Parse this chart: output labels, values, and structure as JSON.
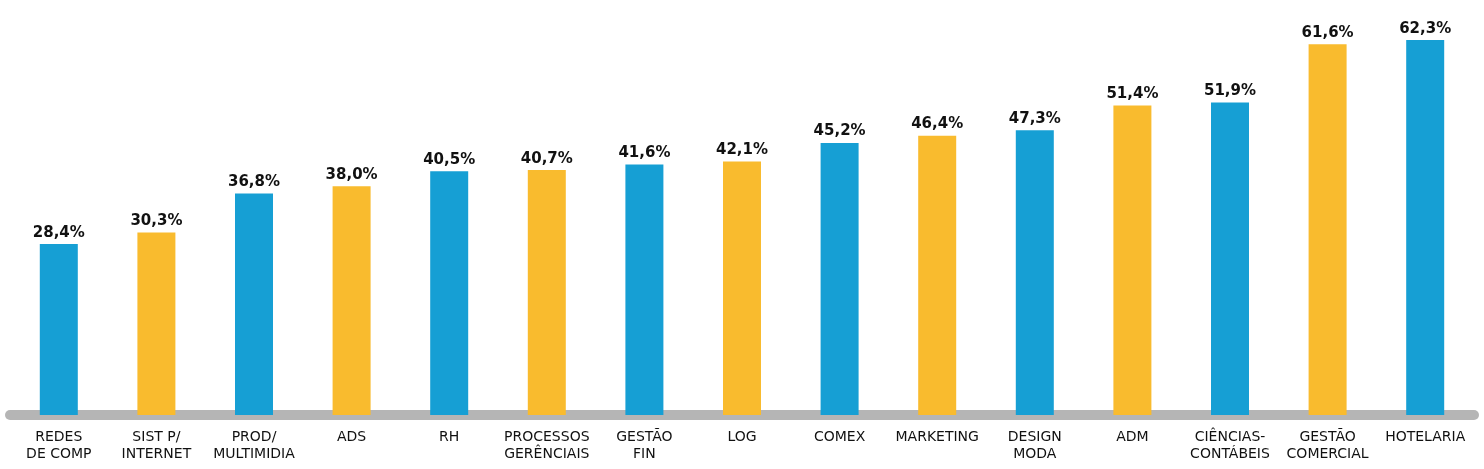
{
  "chart_data": {
    "type": "bar",
    "categories": [
      "REDES\nDE COMP",
      "SIST P/\nINTERNET",
      "PROD/\nMULTIMIDIA",
      "ADS",
      "RH",
      "PROCESSOS\nGERÊNCIAIS",
      "GESTÃO\nFIN",
      "LOG",
      "COMEX",
      "MARKETING",
      "DESIGN\nMODA",
      "ADM",
      "CIÊNCIAS-\nCONTÁBEIS",
      "GESTÃO\nCOMERCIAL",
      "HOTELARIA"
    ],
    "values": [
      28.4,
      30.3,
      36.8,
      38.0,
      40.5,
      40.7,
      41.6,
      42.1,
      45.2,
      46.4,
      47.3,
      51.4,
      51.9,
      61.6,
      62.3
    ],
    "value_labels": [
      "28,4%",
      "30,3%",
      "36,8%",
      "38,0%",
      "40,5%",
      "40,7%",
      "41,6%",
      "42,1%",
      "45,2%",
      "46,4%",
      "47,3%",
      "51,4%",
      "51,9%",
      "61,6%",
      "62,3%"
    ],
    "colors": [
      "#169fd4",
      "#f9bb2e",
      "#169fd4",
      "#f9bb2e",
      "#169fd4",
      "#f9bb2e",
      "#169fd4",
      "#f9bb2e",
      "#169fd4",
      "#f9bb2e",
      "#169fd4",
      "#f9bb2e",
      "#169fd4",
      "#f9bb2e",
      "#169fd4"
    ]
  }
}
